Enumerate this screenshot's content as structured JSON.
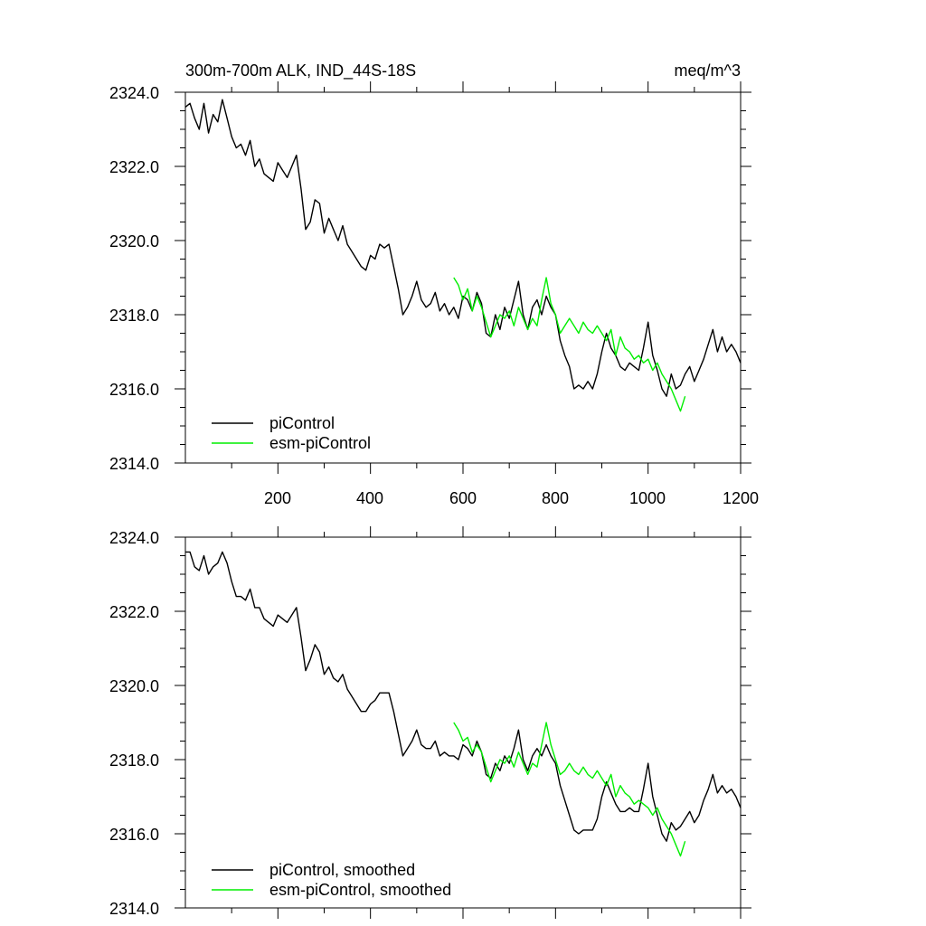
{
  "chart_data": [
    {
      "type": "line",
      "title": "300m-700m ALK, IND_44S-18S",
      "units": "meq/m^3",
      "xlim": [
        0,
        1200
      ],
      "ylim": [
        2314.0,
        2324.0
      ],
      "x_ticks": [
        200,
        400,
        600,
        800,
        1000,
        1200
      ],
      "x_tick_labels": [
        "200",
        "400",
        "600",
        "800",
        "1000",
        "1200"
      ],
      "y_ticks": [
        2314.0,
        2316.0,
        2318.0,
        2320.0,
        2322.0,
        2324.0
      ],
      "y_tick_labels": [
        "2314.0",
        "2316.0",
        "2318.0",
        "2320.0",
        "2322.0",
        "2324.0"
      ],
      "legend_position": "bottom-left",
      "series": [
        {
          "name": "piControl",
          "color": "#000000",
          "x": [
            0,
            10,
            20,
            30,
            40,
            50,
            60,
            70,
            80,
            90,
            100,
            110,
            120,
            130,
            140,
            150,
            160,
            170,
            180,
            190,
            200,
            210,
            220,
            230,
            240,
            250,
            260,
            270,
            280,
            290,
            300,
            310,
            320,
            330,
            340,
            350,
            360,
            370,
            380,
            390,
            400,
            410,
            420,
            430,
            440,
            450,
            460,
            470,
            480,
            490,
            500,
            510,
            520,
            530,
            540,
            550,
            560,
            570,
            580,
            590,
            600,
            610,
            620,
            630,
            640,
            650,
            660,
            670,
            680,
            690,
            700,
            710,
            720,
            730,
            740,
            750,
            760,
            770,
            780,
            790,
            800,
            810,
            820,
            830,
            840,
            850,
            860,
            870,
            880,
            890,
            900,
            910,
            920,
            930,
            940,
            950,
            960,
            970,
            980,
            990,
            1000,
            1010,
            1020,
            1030,
            1040,
            1050,
            1060,
            1070,
            1080,
            1090,
            1100,
            1110,
            1120,
            1130,
            1140,
            1150,
            1160,
            1170,
            1180,
            1190,
            1200
          ],
          "values": [
            2323.6,
            2323.7,
            2323.3,
            2323.0,
            2323.7,
            2322.9,
            2323.4,
            2323.2,
            2323.8,
            2323.3,
            2322.8,
            2322.5,
            2322.6,
            2322.3,
            2322.7,
            2322.0,
            2322.2,
            2321.8,
            2321.7,
            2321.6,
            2322.1,
            2321.9,
            2321.7,
            2322.0,
            2322.3,
            2321.4,
            2320.3,
            2320.5,
            2321.1,
            2321.0,
            2320.2,
            2320.6,
            2320.3,
            2320.0,
            2320.4,
            2319.9,
            2319.7,
            2319.5,
            2319.3,
            2319.2,
            2319.6,
            2319.5,
            2319.9,
            2319.8,
            2319.9,
            2319.3,
            2318.7,
            2318.0,
            2318.2,
            2318.5,
            2318.9,
            2318.4,
            2318.2,
            2318.3,
            2318.6,
            2318.1,
            2318.3,
            2318.0,
            2318.2,
            2317.9,
            2318.5,
            2318.4,
            2318.1,
            2318.6,
            2318.3,
            2317.5,
            2317.4,
            2318.0,
            2317.6,
            2318.2,
            2317.9,
            2318.4,
            2318.9,
            2318.0,
            2317.6,
            2318.2,
            2318.4,
            2318.0,
            2318.5,
            2318.2,
            2318.0,
            2317.3,
            2316.9,
            2316.6,
            2316.0,
            2316.1,
            2316.0,
            2316.2,
            2316.0,
            2316.4,
            2317.0,
            2317.5,
            2317.1,
            2316.9,
            2316.6,
            2316.5,
            2316.7,
            2316.6,
            2316.5,
            2317.1,
            2317.8,
            2316.9,
            2316.5,
            2316.0,
            2315.8,
            2316.4,
            2316.0,
            2316.1,
            2316.4,
            2316.6,
            2316.2,
            2316.5,
            2316.8,
            2317.2,
            2317.6,
            2317.0,
            2317.4,
            2317.0,
            2317.2,
            2317.0,
            2316.7
          ]
        },
        {
          "name": "esm-piControl",
          "color": "#00ee00",
          "x": [
            580,
            590,
            600,
            610,
            620,
            630,
            640,
            650,
            660,
            670,
            680,
            690,
            700,
            710,
            720,
            730,
            740,
            750,
            760,
            770,
            780,
            790,
            800,
            810,
            820,
            830,
            840,
            850,
            860,
            870,
            880,
            890,
            900,
            910,
            920,
            930,
            940,
            950,
            960,
            970,
            980,
            990,
            1000,
            1010,
            1020,
            1030,
            1040,
            1050,
            1060,
            1070,
            1080
          ],
          "values": [
            2319.0,
            2318.8,
            2318.4,
            2318.7,
            2318.1,
            2318.5,
            2318.2,
            2317.8,
            2317.4,
            2317.7,
            2318.0,
            2317.9,
            2318.1,
            2317.7,
            2318.2,
            2317.9,
            2317.6,
            2317.9,
            2317.7,
            2318.4,
            2319.0,
            2318.3,
            2318.0,
            2317.5,
            2317.7,
            2317.9,
            2317.7,
            2317.5,
            2317.8,
            2317.6,
            2317.5,
            2317.7,
            2317.5,
            2317.3,
            2317.6,
            2316.9,
            2317.4,
            2317.1,
            2317.0,
            2316.8,
            2316.9,
            2316.7,
            2316.8,
            2316.5,
            2316.7,
            2316.4,
            2316.2,
            2316.0,
            2315.7,
            2315.4,
            2315.8
          ]
        }
      ],
      "legend": [
        "piControl",
        "esm-piControl"
      ]
    },
    {
      "type": "line",
      "title": "",
      "units": "",
      "xlim": [
        0,
        1200
      ],
      "ylim": [
        2314.0,
        2324.0
      ],
      "x_ticks": [
        200,
        400,
        600,
        800,
        1000,
        1200
      ],
      "x_tick_labels": [],
      "y_ticks": [
        2314.0,
        2316.0,
        2318.0,
        2320.0,
        2322.0,
        2324.0
      ],
      "y_tick_labels": [
        "2314.0",
        "2316.0",
        "2318.0",
        "2320.0",
        "2322.0",
        "2324.0"
      ],
      "legend_position": "bottom-left",
      "series": [
        {
          "name": "piControl, smoothed",
          "color": "#000000",
          "x": [
            0,
            10,
            20,
            30,
            40,
            50,
            60,
            70,
            80,
            90,
            100,
            110,
            120,
            130,
            140,
            150,
            160,
            170,
            180,
            190,
            200,
            210,
            220,
            230,
            240,
            250,
            260,
            270,
            280,
            290,
            300,
            310,
            320,
            330,
            340,
            350,
            360,
            370,
            380,
            390,
            400,
            410,
            420,
            430,
            440,
            450,
            460,
            470,
            480,
            490,
            500,
            510,
            520,
            530,
            540,
            550,
            560,
            570,
            580,
            590,
            600,
            610,
            620,
            630,
            640,
            650,
            660,
            670,
            680,
            690,
            700,
            710,
            720,
            730,
            740,
            750,
            760,
            770,
            780,
            790,
            800,
            810,
            820,
            830,
            840,
            850,
            860,
            870,
            880,
            890,
            900,
            910,
            920,
            930,
            940,
            950,
            960,
            970,
            980,
            990,
            1000,
            1010,
            1020,
            1030,
            1040,
            1050,
            1060,
            1070,
            1080,
            1090,
            1100,
            1110,
            1120,
            1130,
            1140,
            1150,
            1160,
            1170,
            1180,
            1190,
            1200
          ],
          "values": [
            2323.6,
            2323.6,
            2323.2,
            2323.1,
            2323.5,
            2323.0,
            2323.2,
            2323.3,
            2323.6,
            2323.3,
            2322.8,
            2322.4,
            2322.4,
            2322.3,
            2322.6,
            2322.1,
            2322.1,
            2321.8,
            2321.7,
            2321.6,
            2321.9,
            2321.8,
            2321.7,
            2321.9,
            2322.1,
            2321.3,
            2320.4,
            2320.7,
            2321.1,
            2320.9,
            2320.3,
            2320.5,
            2320.2,
            2320.1,
            2320.3,
            2319.9,
            2319.7,
            2319.5,
            2319.3,
            2319.3,
            2319.5,
            2319.6,
            2319.8,
            2319.8,
            2319.8,
            2319.3,
            2318.7,
            2318.1,
            2318.3,
            2318.5,
            2318.8,
            2318.4,
            2318.3,
            2318.3,
            2318.5,
            2318.1,
            2318.2,
            2318.1,
            2318.1,
            2318.0,
            2318.4,
            2318.3,
            2318.1,
            2318.5,
            2318.2,
            2317.6,
            2317.5,
            2317.9,
            2317.7,
            2318.1,
            2317.9,
            2318.3,
            2318.8,
            2318.0,
            2317.7,
            2318.1,
            2318.3,
            2318.1,
            2318.4,
            2318.1,
            2317.9,
            2317.3,
            2316.9,
            2316.5,
            2316.1,
            2316.0,
            2316.1,
            2316.1,
            2316.1,
            2316.4,
            2317.0,
            2317.4,
            2317.1,
            2316.8,
            2316.6,
            2316.6,
            2316.7,
            2316.6,
            2316.6,
            2317.2,
            2317.9,
            2317.0,
            2316.5,
            2316.0,
            2315.8,
            2316.3,
            2316.1,
            2316.2,
            2316.4,
            2316.6,
            2316.3,
            2316.5,
            2316.9,
            2317.2,
            2317.6,
            2317.1,
            2317.3,
            2317.1,
            2317.2,
            2317.0,
            2316.7
          ]
        },
        {
          "name": "esm-piControl, smoothed",
          "color": "#00ee00",
          "x": [
            580,
            590,
            600,
            610,
            620,
            630,
            640,
            650,
            660,
            670,
            680,
            690,
            700,
            710,
            720,
            730,
            740,
            750,
            760,
            770,
            780,
            790,
            800,
            810,
            820,
            830,
            840,
            850,
            860,
            870,
            880,
            890,
            900,
            910,
            920,
            930,
            940,
            950,
            960,
            970,
            980,
            990,
            1000,
            1010,
            1020,
            1030,
            1040,
            1050,
            1060,
            1070,
            1080
          ],
          "values": [
            2319.0,
            2318.8,
            2318.5,
            2318.6,
            2318.2,
            2318.4,
            2318.2,
            2317.8,
            2317.4,
            2317.7,
            2318.0,
            2317.9,
            2318.1,
            2317.8,
            2318.2,
            2317.9,
            2317.6,
            2317.9,
            2317.8,
            2318.4,
            2319.0,
            2318.4,
            2318.0,
            2317.6,
            2317.7,
            2317.9,
            2317.7,
            2317.6,
            2317.8,
            2317.6,
            2317.5,
            2317.7,
            2317.5,
            2317.3,
            2317.6,
            2317.0,
            2317.3,
            2317.1,
            2317.0,
            2316.8,
            2316.9,
            2316.8,
            2316.7,
            2316.5,
            2316.7,
            2316.4,
            2316.2,
            2316.0,
            2315.7,
            2315.4,
            2315.8
          ]
        }
      ],
      "legend": [
        "piControl, smoothed",
        "esm-piControl, smoothed"
      ]
    }
  ]
}
